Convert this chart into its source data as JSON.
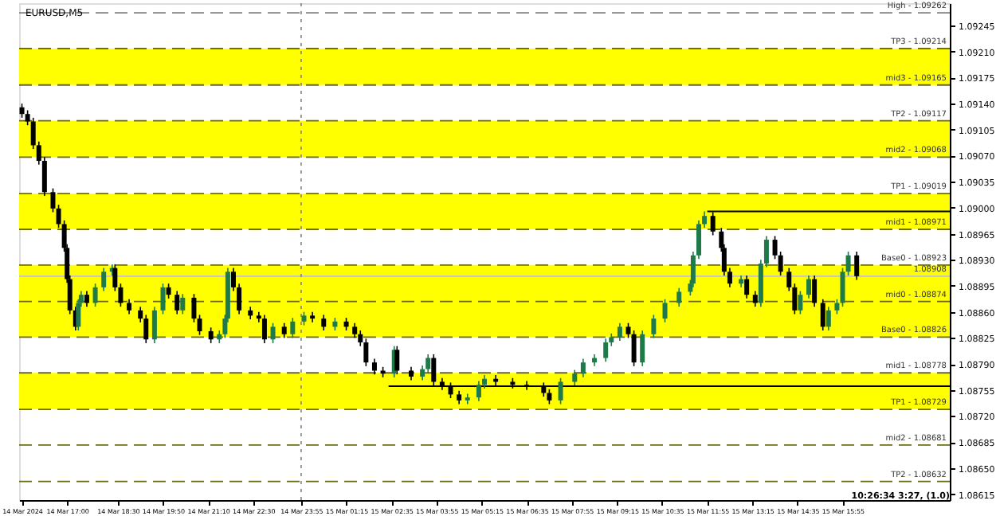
{
  "chart_data": {
    "type": "candlestick",
    "title": "EURUSD,M5",
    "x": [
      "2024-03-14T15:40",
      "2024-03-14T15:50",
      "2024-03-14T16:00",
      "2024-03-14T16:10",
      "2024-03-14T16:20",
      "2024-03-14T16:35",
      "2024-03-14T16:45",
      "2024-03-14T16:55",
      "2024-03-14T17:00",
      "2024-03-14T17:05",
      "2024-03-14T17:15",
      "2024-03-14T17:20",
      "2024-03-14T17:25",
      "2024-03-14T17:35",
      "2024-03-14T17:50",
      "2024-03-14T18:05",
      "2024-03-14T18:20",
      "2024-03-14T18:25",
      "2024-03-14T18:35",
      "2024-03-14T18:50",
      "2024-03-14T19:10",
      "2024-03-14T19:20",
      "2024-03-14T19:35",
      "2024-03-14T19:50",
      "2024-03-14T20:00",
      "2024-03-14T20:15",
      "2024-03-14T20:25",
      "2024-03-14T20:45",
      "2024-03-14T20:55",
      "2024-03-14T21:15",
      "2024-03-14T21:30",
      "2024-03-14T21:40",
      "2024-03-14T21:45",
      "2024-03-14T21:55",
      "2024-03-14T22:05",
      "2024-03-14T22:25",
      "2024-03-14T22:40",
      "2024-03-14T22:50",
      "2024-03-14T23:05",
      "2024-03-14T23:25",
      "2024-03-14T23:40",
      "2024-03-15T00:00",
      "2024-03-15T00:15",
      "2024-03-15T00:35",
      "2024-03-15T00:55",
      "2024-03-15T01:15",
      "2024-03-15T01:30",
      "2024-03-15T01:40",
      "2024-03-15T01:50",
      "2024-03-15T02:05",
      "2024-03-15T02:20",
      "2024-03-15T02:40",
      "2024-03-15T02:45",
      "2024-03-15T03:10",
      "2024-03-15T03:30",
      "2024-03-15T03:40",
      "2024-03-15T03:50",
      "2024-03-15T04:05",
      "2024-03-15T04:20",
      "2024-03-15T04:35",
      "2024-03-15T04:50",
      "2024-03-15T05:10",
      "2024-03-15T05:20",
      "2024-03-15T05:40",
      "2024-03-15T06:10",
      "2024-03-15T06:35",
      "2024-03-15T07:05",
      "2024-03-15T07:15",
      "2024-03-15T07:35",
      "2024-03-15T08:00",
      "2024-03-15T08:15",
      "2024-03-15T08:35",
      "2024-03-15T08:55",
      "2024-03-15T09:05",
      "2024-03-15T09:20",
      "2024-03-15T09:35",
      "2024-03-15T09:45",
      "2024-03-15T10:00",
      "2024-03-15T10:20",
      "2024-03-15T10:40",
      "2024-03-15T11:05",
      "2024-03-15T11:25",
      "2024-03-15T11:30",
      "2024-03-15T11:40",
      "2024-03-15T11:50",
      "2024-03-15T12:05",
      "2024-03-15T12:20",
      "2024-03-15T12:25",
      "2024-03-15T12:35",
      "2024-03-15T12:55",
      "2024-03-15T13:05",
      "2024-03-15T13:20",
      "2024-03-15T13:30",
      "2024-03-15T13:40",
      "2024-03-15T13:55",
      "2024-03-15T14:05",
      "2024-03-15T14:20",
      "2024-03-15T14:30",
      "2024-03-15T14:40",
      "2024-03-15T14:55",
      "2024-03-15T15:05",
      "2024-03-15T15:20",
      "2024-03-15T15:30",
      "2024-03-15T15:45",
      "2024-03-15T15:55",
      "2024-03-15T16:05",
      "2024-03-15T16:20"
    ],
    "ohlc": [
      [
        1.09135,
        1.0914,
        1.09121,
        1.09126
      ],
      [
        1.09126,
        1.09131,
        1.09111,
        1.09116
      ],
      [
        1.09116,
        1.09121,
        1.09079,
        1.09084
      ],
      [
        1.09084,
        1.09089,
        1.09058,
        1.09063
      ],
      [
        1.09063,
        1.09068,
        1.09016,
        1.09021
      ],
      [
        1.09021,
        1.09026,
        1.08994,
        1.08999
      ],
      [
        1.08999,
        1.09004,
        1.08973,
        1.08978
      ],
      [
        1.08978,
        1.08983,
        1.08941,
        1.08946
      ],
      [
        1.08946,
        1.08951,
        1.08899,
        1.08904
      ],
      [
        1.08904,
        1.08909,
        1.08857,
        1.08862
      ],
      [
        1.08862,
        1.08867,
        1.08835,
        1.0884
      ],
      [
        1.0884,
        1.08877,
        1.08835,
        1.08872
      ],
      [
        1.08872,
        1.08888,
        1.08867,
        1.08883
      ],
      [
        1.08883,
        1.08888,
        1.08867,
        1.08872
      ],
      [
        1.08872,
        1.08898,
        1.08867,
        1.08893
      ],
      [
        1.08893,
        1.08919,
        1.08888,
        1.08914
      ],
      [
        1.08914,
        1.08924,
        1.08909,
        1.08919
      ],
      [
        1.08919,
        1.08924,
        1.08888,
        1.08893
      ],
      [
        1.08893,
        1.08898,
        1.08867,
        1.08872
      ],
      [
        1.08872,
        1.08877,
        1.08857,
        1.08862
      ],
      [
        1.08862,
        1.08867,
        1.08846,
        1.08851
      ],
      [
        1.08851,
        1.08856,
        1.08818,
        1.08823
      ],
      [
        1.08823,
        1.08867,
        1.08818,
        1.08862
      ],
      [
        1.08862,
        1.08898,
        1.08857,
        1.08893
      ],
      [
        1.08893,
        1.08898,
        1.08878,
        1.08883
      ],
      [
        1.08883,
        1.08888,
        1.08857,
        1.08862
      ],
      [
        1.08862,
        1.08884,
        1.08857,
        1.08879
      ],
      [
        1.08879,
        1.08884,
        1.08846,
        1.08851
      ],
      [
        1.08851,
        1.08856,
        1.08829,
        1.08834
      ],
      [
        1.08834,
        1.08839,
        1.08818,
        1.08823
      ],
      [
        1.08823,
        1.08835,
        1.08818,
        1.0883
      ],
      [
        1.0883,
        1.08856,
        1.08825,
        1.08851
      ],
      [
        1.08851,
        1.08919,
        1.08846,
        1.08914
      ],
      [
        1.08914,
        1.08919,
        1.08888,
        1.08893
      ],
      [
        1.08893,
        1.08898,
        1.08857,
        1.08862
      ],
      [
        1.08862,
        1.08867,
        1.0885,
        1.08855
      ],
      [
        1.08855,
        1.0886,
        1.08846,
        1.08851
      ],
      [
        1.08851,
        1.08856,
        1.08818,
        1.08823
      ],
      [
        1.08823,
        1.08845,
        1.08818,
        1.0884
      ],
      [
        1.0884,
        1.08845,
        1.08825,
        1.0883
      ],
      [
        1.0883,
        1.08852,
        1.08825,
        1.08847
      ],
      [
        1.08847,
        1.0886,
        1.08842,
        1.08855
      ],
      [
        1.08855,
        1.0886,
        1.08846,
        1.08851
      ],
      [
        1.08851,
        1.08856,
        1.08835,
        1.0884
      ],
      [
        1.0884,
        1.08852,
        1.08835,
        1.08847
      ],
      [
        1.08847,
        1.08852,
        1.08835,
        1.0884
      ],
      [
        1.0884,
        1.08845,
        1.08825,
        1.0883
      ],
      [
        1.0883,
        1.08835,
        1.08814,
        1.08819
      ],
      [
        1.08819,
        1.08824,
        1.08787,
        1.08792
      ],
      [
        1.08792,
        1.08797,
        1.08776,
        1.08781
      ],
      [
        1.08781,
        1.08786,
        1.08772,
        1.08777
      ],
      [
        1.08777,
        1.08814,
        1.08772,
        1.08809
      ],
      [
        1.08809,
        1.08814,
        1.08776,
        1.08781
      ],
      [
        1.08781,
        1.08786,
        1.08768,
        1.08773
      ],
      [
        1.08773,
        1.08788,
        1.08768,
        1.08783
      ],
      [
        1.08783,
        1.08803,
        1.08778,
        1.08798
      ],
      [
        1.08798,
        1.08803,
        1.08761,
        1.08766
      ],
      [
        1.08766,
        1.08771,
        1.08755,
        1.0876
      ],
      [
        1.0876,
        1.08765,
        1.08744,
        1.08749
      ],
      [
        1.08749,
        1.08754,
        1.08736,
        1.08741
      ],
      [
        1.08741,
        1.0875,
        1.08736,
        1.08745
      ],
      [
        1.08745,
        1.08767,
        1.0874,
        1.08762
      ],
      [
        1.08762,
        1.08775,
        1.08757,
        1.0877
      ],
      [
        1.0877,
        1.08775,
        1.08761,
        1.08766
      ],
      [
        1.08766,
        1.08771,
        1.08757,
        1.08762
      ],
      [
        1.08762,
        1.08767,
        1.08755,
        1.0876
      ],
      [
        1.0876,
        1.08765,
        1.08746,
        1.08751
      ],
      [
        1.08751,
        1.08756,
        1.08736,
        1.08741
      ],
      [
        1.08741,
        1.08771,
        1.08736,
        1.08766
      ],
      [
        1.08766,
        1.08782,
        1.08761,
        1.08777
      ],
      [
        1.08777,
        1.08797,
        1.08772,
        1.08792
      ],
      [
        1.08792,
        1.08803,
        1.08787,
        1.08798
      ],
      [
        1.08798,
        1.08824,
        1.08793,
        1.08819
      ],
      [
        1.08819,
        1.08831,
        1.08814,
        1.08826
      ],
      [
        1.08826,
        1.08845,
        1.08821,
        1.0884
      ],
      [
        1.0884,
        1.08845,
        1.08825,
        1.0883
      ],
      [
        1.0883,
        1.08835,
        1.08787,
        1.08792
      ],
      [
        1.08792,
        1.08835,
        1.08787,
        1.0883
      ],
      [
        1.0883,
        1.08856,
        1.08825,
        1.08851
      ],
      [
        1.08851,
        1.08877,
        1.08846,
        1.08872
      ],
      [
        1.08872,
        1.08892,
        1.08867,
        1.08887
      ],
      [
        1.08887,
        1.08903,
        1.08882,
        1.08898
      ],
      [
        1.08898,
        1.08941,
        1.08893,
        1.08936
      ],
      [
        1.08936,
        1.08983,
        1.08931,
        1.08978
      ],
      [
        1.08978,
        1.08995,
        1.08973,
        1.08989
      ],
      [
        1.08989,
        1.08994,
        1.08963,
        1.08968
      ],
      [
        1.08968,
        1.08973,
        1.08941,
        1.08946
      ],
      [
        1.08946,
        1.08951,
        1.08909,
        1.08914
      ],
      [
        1.08914,
        1.08919,
        1.08893,
        1.08898
      ],
      [
        1.08898,
        1.08909,
        1.08893,
        1.08904
      ],
      [
        1.08904,
        1.08909,
        1.08878,
        1.08883
      ],
      [
        1.08883,
        1.08888,
        1.08867,
        1.08872
      ],
      [
        1.08872,
        1.0893,
        1.08867,
        1.08925
      ],
      [
        1.08925,
        1.08962,
        1.0892,
        1.08957
      ],
      [
        1.08957,
        1.08962,
        1.08931,
        1.08936
      ],
      [
        1.08936,
        1.08941,
        1.08909,
        1.08914
      ],
      [
        1.08914,
        1.08919,
        1.08888,
        1.08893
      ],
      [
        1.08893,
        1.08898,
        1.08857,
        1.08862
      ],
      [
        1.08862,
        1.08888,
        1.08857,
        1.08883
      ],
      [
        1.08883,
        1.08909,
        1.08878,
        1.08904
      ],
      [
        1.08904,
        1.08909,
        1.08867,
        1.08872
      ],
      [
        1.08872,
        1.08877,
        1.08835,
        1.0884
      ],
      [
        1.0884,
        1.08867,
        1.08835,
        1.08862
      ],
      [
        1.08862,
        1.08877,
        1.08857,
        1.08872
      ],
      [
        1.08872,
        1.08919,
        1.08867,
        1.08914
      ],
      [
        1.08914,
        1.08941,
        1.08909,
        1.08936
      ],
      [
        1.08936,
        1.08941,
        1.08903,
        1.08908
      ]
    ],
    "series": [
      {
        "type": "line",
        "color": "#000000",
        "x": [
          "2024-03-15T11:55",
          "2024-03-15T19:05"
        ],
        "values": [
          1.08995,
          1.08995
        ]
      },
      {
        "type": "line",
        "color": "#000000",
        "x": [
          "2024-03-15T02:30",
          "2024-03-15T19:05"
        ],
        "values": [
          1.0876,
          1.0876
        ]
      }
    ],
    "xlim": [
      "2024-03-14T15:35",
      "2024-03-15T19:05"
    ],
    "xticks": [
      {
        "value": "2024-03-14T15:40",
        "label": "14 Mar 2024"
      },
      {
        "value": "2024-03-14T17:00",
        "label": "14 Mar 17:00"
      },
      {
        "value": "2024-03-14T18:30",
        "label": "14 Mar 18:30"
      },
      {
        "value": "2024-03-14T19:50",
        "label": "14 Mar 19:50"
      },
      {
        "value": "2024-03-14T21:10",
        "label": "14 Mar 21:10"
      },
      {
        "value": "2024-03-14T22:30",
        "label": "14 Mar 22:30"
      },
      {
        "value": "2024-03-14T23:55",
        "label": "14 Mar 23:55"
      },
      {
        "value": "2024-03-15T01:15",
        "label": "15 Mar 01:15"
      },
      {
        "value": "2024-03-15T02:35",
        "label": "15 Mar 02:35"
      },
      {
        "value": "2024-03-15T03:55",
        "label": "15 Mar 03:55"
      },
      {
        "value": "2024-03-15T05:15",
        "label": "15 Mar 05:15"
      },
      {
        "value": "2024-03-15T06:35",
        "label": "15 Mar 06:35"
      },
      {
        "value": "2024-03-15T07:55",
        "label": "15 Mar 07:55"
      },
      {
        "value": "2024-03-15T09:15",
        "label": "15 Mar 09:15"
      },
      {
        "value": "2024-03-15T10:35",
        "label": "15 Mar 10:35"
      },
      {
        "value": "2024-03-15T11:55",
        "label": "15 Mar 11:55"
      },
      {
        "value": "2024-03-15T13:15",
        "label": "15 Mar 13:15"
      },
      {
        "value": "2024-03-15T14:35",
        "label": "15 Mar 14:35"
      },
      {
        "value": "2024-03-15T15:55",
        "label": "15 Mar 15:55"
      }
    ],
    "ylim": [
      1.08607,
      1.09275
    ],
    "yticks": [
      {
        "value": 1.09245,
        "label": "1.09245"
      },
      {
        "value": 1.0921,
        "label": "1.09210"
      },
      {
        "value": 1.09175,
        "label": "1.09175"
      },
      {
        "value": 1.0914,
        "label": "1.09140"
      },
      {
        "value": 1.09105,
        "label": "1.09105"
      },
      {
        "value": 1.0907,
        "label": "1.09070"
      },
      {
        "value": 1.09035,
        "label": "1.09035"
      },
      {
        "value": 1.09,
        "label": "1.09000"
      },
      {
        "value": 1.08965,
        "label": "1.08965"
      },
      {
        "value": 1.0893,
        "label": "1.08930"
      },
      {
        "value": 1.08895,
        "label": "1.08895"
      },
      {
        "value": 1.0886,
        "label": "1.08860"
      },
      {
        "value": 1.08825,
        "label": "1.08825"
      },
      {
        "value": 1.0879,
        "label": "1.08790"
      },
      {
        "value": 1.08755,
        "label": "1.08755"
      },
      {
        "value": 1.0872,
        "label": "1.08720"
      },
      {
        "value": 1.08685,
        "label": "1.08685"
      },
      {
        "value": 1.0865,
        "label": "1.08650"
      },
      {
        "value": 1.08615,
        "label": "1.08615"
      }
    ],
    "bands": [
      {
        "axis": "y",
        "from": 1.09165,
        "to": 1.09214,
        "color": "#ffff00"
      },
      {
        "axis": "y",
        "from": 1.09068,
        "to": 1.09117,
        "color": "#ffff00"
      },
      {
        "axis": "y",
        "from": 1.08971,
        "to": 1.09019,
        "color": "#ffff00"
      },
      {
        "axis": "y",
        "from": 1.08826,
        "to": 1.08923,
        "color": "#ffff00"
      },
      {
        "axis": "y",
        "from": 1.08729,
        "to": 1.08778,
        "color": "#ffff00"
      }
    ],
    "ref_lines": [
      {
        "axis": "y",
        "value": 1.09262,
        "label": "High - 1.09262",
        "color": "#808080",
        "line_style": "dashed"
      },
      {
        "axis": "y",
        "value": 1.09214,
        "label": "TP3 - 1.09214",
        "color": "#6b6b1a",
        "line_style": "dashed"
      },
      {
        "axis": "y",
        "value": 1.09165,
        "label": "mid3 - 1.09165",
        "color": "#6b6b1a",
        "line_style": "dashed"
      },
      {
        "axis": "y",
        "value": 1.09117,
        "label": "TP2 - 1.09117",
        "color": "#6b6b1a",
        "line_style": "dashed"
      },
      {
        "axis": "y",
        "value": 1.09068,
        "label": "mid2 - 1.09068",
        "color": "#6b6b1a",
        "line_style": "dashed"
      },
      {
        "axis": "y",
        "value": 1.09019,
        "label": "TP1 - 1.09019",
        "color": "#6b6b1a",
        "line_style": "dashed"
      },
      {
        "axis": "y",
        "value": 1.08971,
        "label": "mid1 - 1.08971",
        "color": "#6b6b1a",
        "line_style": "dashed"
      },
      {
        "axis": "y",
        "value": 1.08923,
        "label": "Base0 - 1.08923",
        "color": "#6b6b1a",
        "line_style": "dashed"
      },
      {
        "axis": "y",
        "value": 1.08874,
        "label": "mid0 - 1.08874",
        "color": "#6b6b1a",
        "line_style": "dashed"
      },
      {
        "axis": "y",
        "value": 1.08826,
        "label": "Base0 - 1.08826",
        "color": "#6b6b1a",
        "line_style": "dashed"
      },
      {
        "axis": "y",
        "value": 1.08778,
        "label": "mid1 - 1.08778",
        "color": "#6b6b1a",
        "line_style": "dashed"
      },
      {
        "axis": "y",
        "value": 1.08729,
        "label": "TP1 - 1.08729",
        "color": "#6b6b1a",
        "line_style": "dashed"
      },
      {
        "axis": "y",
        "value": 1.08681,
        "label": "mid2 - 1.08681",
        "color": "#6b6b1a",
        "line_style": "dashed"
      },
      {
        "axis": "y",
        "value": 1.08632,
        "label": "TP2 - 1.08632",
        "color": "#6b6b1a",
        "line_style": "dashed"
      },
      {
        "axis": "y",
        "value": 1.08908,
        "label": "1.08908",
        "color": "#c0c0c0",
        "line_style": "solid"
      },
      {
        "axis": "x",
        "value": "2024-03-14T23:55",
        "color": "#808080",
        "line_style": "dotted"
      }
    ],
    "annotations": [
      "10:26:34 3:27, (1.0)"
    ],
    "grid": false
  }
}
